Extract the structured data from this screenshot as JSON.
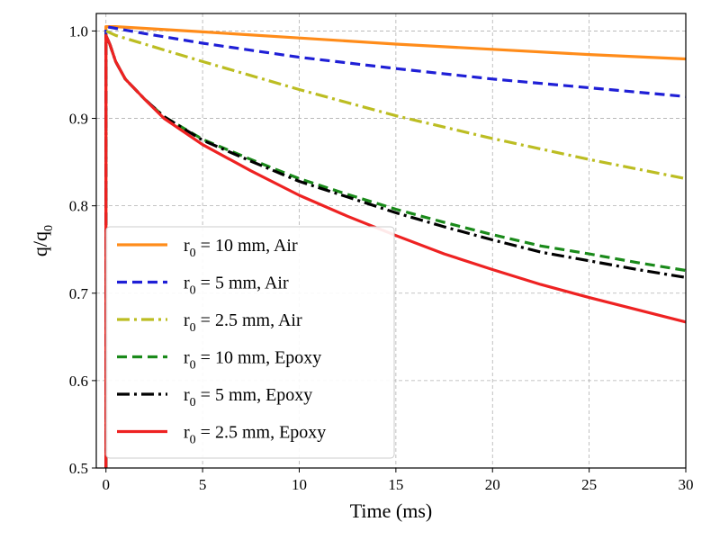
{
  "chart_data": {
    "type": "line",
    "xlabel": "Time (ms)",
    "ylabel": "q/q0",
    "ylabel_main": "q/q",
    "ylabel_sub": "0",
    "xlim": [
      -0.5,
      30
    ],
    "ylim": [
      0.5,
      1.02
    ],
    "xticks": [
      0,
      5,
      10,
      15,
      20,
      25,
      30
    ],
    "xtick_labels": [
      "0",
      "5",
      "10",
      "15",
      "20",
      "25",
      "30"
    ],
    "yticks": [
      0.5,
      0.6,
      0.7,
      0.8,
      0.9,
      1.0
    ],
    "ytick_labels": [
      "0.5",
      "0.6",
      "0.7",
      "0.8",
      "0.9",
      "1.0"
    ],
    "grid": true,
    "legend_position": "bottom-left",
    "series": [
      {
        "name": "r0 = 10 mm, Air",
        "label_prefix": "r",
        "label_sub": "0",
        "label_suffix": " = 10 mm, Air",
        "color": "#ff8c1a",
        "dash": "solid",
        "x": [
          0,
          0.5,
          2,
          5,
          10,
          15,
          20,
          25,
          30
        ],
        "y": [
          1.005,
          1.005,
          1.003,
          0.999,
          0.992,
          0.985,
          0.979,
          0.973,
          0.968
        ]
      },
      {
        "name": "r0 = 5 mm, Air",
        "label_prefix": "r",
        "label_sub": "0",
        "label_suffix": " = 5 mm, Air",
        "color": "#1f1fd6",
        "dash": "dashed",
        "x": [
          0,
          0.5,
          2,
          5,
          10,
          15,
          20,
          25,
          30
        ],
        "y": [
          1.005,
          1.003,
          0.997,
          0.986,
          0.97,
          0.957,
          0.945,
          0.935,
          0.925
        ]
      },
      {
        "name": "r0 = 2.5 mm, Air",
        "label_prefix": "r",
        "label_sub": "0",
        "label_suffix": " = 2.5 mm, Air",
        "color": "#bcbd22",
        "dash": "dashdot",
        "x": [
          0,
          0.5,
          2,
          5,
          10,
          15,
          20,
          25,
          30
        ],
        "y": [
          1.0,
          0.995,
          0.985,
          0.965,
          0.933,
          0.903,
          0.877,
          0.853,
          0.831
        ]
      },
      {
        "name": "r0 = 10 mm, Epoxy",
        "label_prefix": "r",
        "label_sub": "0",
        "label_suffix": " = 10 mm, Epoxy",
        "color": "#1a8a1a",
        "dash": "dashed",
        "x": [
          0,
          0.2,
          0.5,
          1,
          2,
          3,
          5,
          7.5,
          10,
          12.5,
          15,
          17.5,
          20,
          22.5,
          25,
          27.5,
          30
        ],
        "y": [
          0.995,
          0.985,
          0.965,
          0.945,
          0.922,
          0.902,
          0.876,
          0.853,
          0.831,
          0.813,
          0.796,
          0.781,
          0.767,
          0.754,
          0.745,
          0.735,
          0.726
        ]
      },
      {
        "name": "r0 = 5 mm, Epoxy",
        "label_prefix": "r",
        "label_sub": "0",
        "label_suffix": " = 5 mm, Epoxy",
        "color": "#000000",
        "dash": "dashdot",
        "x": [
          0,
          0.2,
          0.5,
          1,
          2,
          3,
          5,
          7.5,
          10,
          12.5,
          15,
          17.5,
          20,
          22.5,
          25,
          27.5,
          30
        ],
        "y": [
          0.995,
          0.985,
          0.965,
          0.945,
          0.922,
          0.902,
          0.875,
          0.851,
          0.828,
          0.81,
          0.792,
          0.776,
          0.761,
          0.747,
          0.737,
          0.727,
          0.718
        ]
      },
      {
        "name": "r0 = 2.5 mm, Epoxy",
        "label_prefix": "r",
        "label_sub": "0",
        "label_suffix": " = 2.5 mm, Epoxy",
        "color": "#ee2222",
        "dash": "solid",
        "x": [
          0,
          0.2,
          0.5,
          1,
          2,
          3,
          5,
          7.5,
          10,
          12.5,
          15,
          17.5,
          20,
          22.5,
          25,
          27.5,
          30
        ],
        "y": [
          0.995,
          0.985,
          0.965,
          0.945,
          0.922,
          0.9,
          0.87,
          0.84,
          0.812,
          0.788,
          0.766,
          0.745,
          0.727,
          0.71,
          0.695,
          0.681,
          0.667
        ]
      }
    ]
  }
}
